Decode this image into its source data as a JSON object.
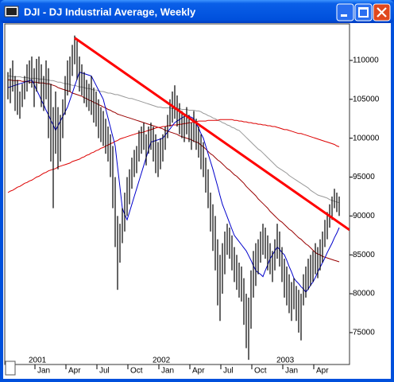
{
  "chart_data": {
    "type": "ohlc",
    "title": "DJI - DJ Industrial Average, Weekly",
    "categories": [
      null,
      null,
      null,
      null,
      null,
      null,
      null,
      null,
      null,
      null,
      null,
      null,
      "Jan",
      null,
      null,
      null,
      null,
      null,
      null,
      null,
      null,
      null,
      null,
      null,
      null,
      "Apr",
      null,
      null,
      null,
      null,
      null,
      null,
      null,
      null,
      null,
      null,
      null,
      null,
      "Jul",
      null,
      null,
      null,
      null,
      null,
      null,
      null,
      null,
      null,
      null,
      null,
      null,
      "Oct",
      null,
      null,
      null,
      null,
      null,
      null,
      null,
      null,
      null,
      null,
      null,
      null,
      "Jan",
      null,
      null,
      null,
      null,
      null,
      null,
      null,
      null,
      null,
      null,
      null,
      null,
      "Apr",
      null,
      null,
      null,
      null,
      null,
      null,
      null,
      null,
      null,
      null,
      null,
      null,
      "Jul",
      null,
      null,
      null,
      null,
      null,
      null,
      null,
      null,
      null,
      null,
      null,
      null,
      "Oct",
      null,
      null,
      null,
      null,
      null,
      null,
      null,
      null,
      null,
      null,
      null,
      null,
      "Jan",
      null,
      null,
      null,
      null,
      null,
      null,
      null,
      null,
      null,
      null,
      null,
      null,
      "Apr",
      null,
      null,
      null,
      null,
      null,
      null,
      null,
      null,
      null,
      null
    ],
    "year_labels": [
      "2001",
      "2002",
      "2003"
    ],
    "ylim": [
      70900,
      114700
    ],
    "yticks": [
      75000,
      80000,
      85000,
      90000,
      95000,
      100000,
      105000,
      110000
    ],
    "grid": false,
    "ohlc": {
      "color": "#000000",
      "high": [
        108500,
        109000,
        110000,
        108000,
        107500,
        106000,
        107000,
        108000,
        109500,
        110000,
        110500,
        109000,
        110200,
        110500,
        109500,
        108000,
        110000,
        109000,
        107000,
        104000,
        106000,
        104000,
        103000,
        105000,
        108000,
        110000,
        110500,
        112000,
        113200,
        112500,
        110500,
        109500,
        108500,
        107500,
        107000,
        108000,
        106500,
        106000,
        105000,
        104000,
        103500,
        102500,
        101500,
        100500,
        99000,
        95000,
        90000,
        89000,
        91000,
        93000,
        95000,
        96000,
        97500,
        98500,
        99000,
        101000,
        101500,
        102000,
        100500,
        101500,
        102000,
        101500,
        100500,
        99500,
        100000,
        100500,
        101500,
        103000,
        105000,
        106000,
        106800,
        105500,
        104500,
        103500,
        103000,
        104000,
        103000,
        102000,
        103500,
        102500,
        101500,
        100500,
        99500,
        97500,
        96000,
        93000,
        91500,
        90000,
        87000,
        85000,
        86500,
        88000,
        89000,
        88500,
        87500,
        86000,
        85000,
        84000,
        83500,
        82000,
        80000,
        79500,
        83000,
        85500,
        86500,
        87000,
        88000,
        89000,
        88500,
        87500,
        86500,
        85500,
        87000,
        89000,
        88000,
        86000,
        84500,
        83500,
        82500,
        81500,
        82000,
        81000,
        80500,
        80000,
        82500,
        83500,
        84500,
        85000,
        85500,
        86500,
        86000,
        87000,
        88000,
        89500,
        90500,
        91500,
        92500,
        93500,
        93000,
        92500
      ],
      "low": [
        105000,
        104500,
        106000,
        103500,
        103000,
        102500,
        104000,
        105000,
        106000,
        107000,
        106500,
        104000,
        106000,
        107000,
        104000,
        103500,
        105000,
        100000,
        97000,
        91000,
        98000,
        96000,
        97000,
        100000,
        103000,
        105500,
        106000,
        108000,
        109500,
        107500,
        106000,
        105500,
        104500,
        104000,
        103500,
        103000,
        102000,
        101500,
        100000,
        99500,
        99000,
        98000,
        97000,
        95000,
        91000,
        86000,
        80500,
        84000,
        86500,
        88000,
        90000,
        91500,
        93500,
        95000,
        95500,
        97000,
        98000,
        98500,
        96500,
        98000,
        98500,
        97000,
        95500,
        95000,
        96000,
        97000,
        98500,
        100000,
        101500,
        102000,
        102500,
        101500,
        100500,
        100000,
        99500,
        100500,
        99500,
        98500,
        99500,
        98500,
        97500,
        96000,
        95000,
        93000,
        91000,
        88000,
        85500,
        83000,
        78500,
        76500,
        80000,
        82500,
        85000,
        84500,
        83000,
        81500,
        80500,
        79500,
        79000,
        76000,
        73000,
        71500,
        75500,
        79500,
        81000,
        82500,
        84000,
        85000,
        84500,
        83000,
        82500,
        81500,
        83000,
        84500,
        83500,
        81500,
        79500,
        78500,
        77500,
        76500,
        78000,
        76500,
        75000,
        74000,
        78500,
        79500,
        80500,
        81000,
        81500,
        82500,
        82000,
        83000,
        84000,
        86000,
        87000,
        88500,
        89500,
        91000,
        90500,
        90000
      ]
    },
    "moving_averages": [
      {
        "color": "#999999",
        "values": [
          108000,
          108000,
          107900,
          107900,
          107900,
          107900,
          107800,
          107800,
          107800,
          107700,
          107700,
          107700,
          107700,
          107600,
          107600,
          107600,
          107500,
          107500,
          107400,
          107400,
          107300,
          107200,
          107200,
          107100,
          107000,
          107000,
          106900,
          106800,
          106800,
          106700,
          106600,
          106600,
          106500,
          106400,
          106400,
          106300,
          106200,
          106200,
          106100,
          106000,
          106000,
          105900,
          105800,
          105800,
          105700,
          105600,
          105600,
          105500,
          105400,
          105300,
          105200,
          105100,
          105100,
          105000,
          104900,
          104800,
          104700,
          104600,
          104500,
          104400,
          104300,
          104200,
          104100,
          104000,
          104000,
          103900,
          103900,
          103900,
          103900,
          103800,
          103800,
          103800,
          103800,
          103700,
          103700,
          103700,
          103600,
          103600,
          103600,
          103500,
          103500,
          103400,
          103200,
          103100,
          102900,
          102800,
          102600,
          102500,
          102300,
          102200,
          102000,
          101900,
          101700,
          101600,
          101400,
          101300,
          101100,
          101000,
          100700,
          100400,
          100100,
          99800,
          99500,
          99200,
          98900,
          98600,
          98400,
          98100,
          97800,
          97500,
          97200,
          96900,
          96600,
          96300,
          96100,
          95900,
          95700,
          95500,
          95200,
          95000,
          94800,
          94600,
          94400,
          94200,
          94000,
          93800,
          93600,
          93300,
          93100,
          92900,
          92700,
          92600,
          92500,
          92400,
          92300,
          92100,
          92000,
          91900,
          91800,
          91700
        ]
      },
      {
        "color": "#990000",
        "values": [
          107500,
          107500,
          107400,
          107400,
          107400,
          107400,
          107300,
          107300,
          107300,
          107200,
          107200,
          107200,
          107200,
          107100,
          107100,
          107100,
          107000,
          107000,
          106900,
          106800,
          106700,
          106500,
          106400,
          106300,
          106200,
          106100,
          106000,
          105800,
          105700,
          105600,
          105500,
          105400,
          105200,
          105100,
          104900,
          104800,
          104600,
          104500,
          104300,
          104200,
          104000,
          103900,
          103700,
          103600,
          103400,
          103300,
          103100,
          103000,
          102900,
          102800,
          102700,
          102600,
          102500,
          102400,
          102300,
          102200,
          102100,
          102000,
          101900,
          101800,
          101700,
          101600,
          101500,
          101400,
          101300,
          101200,
          101000,
          100900,
          100800,
          100700,
          100600,
          100500,
          100300,
          100200,
          100100,
          100000,
          99900,
          99800,
          99600,
          99500,
          99400,
          99100,
          98900,
          98600,
          98300,
          98000,
          97800,
          97500,
          97200,
          97000,
          96700,
          96400,
          96100,
          95900,
          95600,
          95300,
          95100,
          94800,
          94500,
          94200,
          93800,
          93500,
          93200,
          92900,
          92600,
          92200,
          91900,
          91600,
          91300,
          91000,
          90600,
          90300,
          90000,
          89700,
          89400,
          89200,
          88900,
          88600,
          88300,
          88100,
          87800,
          87500,
          87200,
          87000,
          86700,
          86400,
          86200,
          85900,
          85600,
          85300,
          85100,
          85000,
          84800,
          84700,
          84600,
          84500,
          84400,
          84300,
          84200,
          84100
        ]
      },
      {
        "color": "#dd0000",
        "values": [
          93000,
          93200,
          93300,
          93500,
          93700,
          93800,
          94000,
          94200,
          94300,
          94500,
          94600,
          94800,
          95000,
          95100,
          95300,
          95500,
          95600,
          95800,
          95900,
          96000,
          96100,
          96300,
          96400,
          96500,
          96600,
          96700,
          96800,
          97000,
          97100,
          97200,
          97300,
          97500,
          97600,
          97800,
          97900,
          98100,
          98200,
          98400,
          98500,
          98700,
          98800,
          99000,
          99100,
          99300,
          99400,
          99600,
          99700,
          99900,
          100000,
          100100,
          100200,
          100300,
          100400,
          100500,
          100600,
          100700,
          100700,
          100800,
          100900,
          101000,
          101100,
          101200,
          101300,
          101400,
          101400,
          101500,
          101500,
          101600,
          101600,
          101700,
          101700,
          101700,
          101800,
          101800,
          101900,
          101900,
          102000,
          102000,
          102100,
          102100,
          102200,
          102200,
          102200,
          102200,
          102300,
          102300,
          102300,
          102300,
          102300,
          102400,
          102400,
          102400,
          102400,
          102400,
          102400,
          102300,
          102300,
          102200,
          102200,
          102100,
          102100,
          102000,
          102000,
          101900,
          101900,
          101800,
          101800,
          101700,
          101700,
          101600,
          101600,
          101500,
          101500,
          101400,
          101300,
          101200,
          101100,
          101100,
          101000,
          100900,
          100800,
          100700,
          100600,
          100600,
          100500,
          100400,
          100300,
          100200,
          100100,
          100000,
          99900,
          99800,
          99700,
          99600,
          99500,
          99400,
          99300,
          99200,
          99000,
          98900
        ]
      },
      {
        "color": "#0000cc",
        "values": [
          106500,
          106600,
          106700,
          106800,
          106900,
          107000,
          107100,
          107200,
          107300,
          107400,
          107500,
          106900,
          106200,
          105600,
          104900,
          104300,
          103600,
          103000,
          102300,
          101700,
          101000,
          101600,
          102200,
          102800,
          103400,
          104000,
          104900,
          105800,
          106700,
          107600,
          108500,
          108400,
          108300,
          108200,
          108100,
          108000,
          107400,
          106800,
          106200,
          105600,
          105000,
          103800,
          102600,
          101400,
          100200,
          99000,
          96300,
          93700,
          91000,
          90200,
          89500,
          90500,
          91500,
          92500,
          93500,
          94500,
          95500,
          96500,
          97500,
          98500,
          99500,
          99600,
          99700,
          99800,
          99900,
          100000,
          100400,
          100800,
          101200,
          101600,
          102000,
          102200,
          102400,
          102600,
          102800,
          103000,
          102800,
          102700,
          102500,
          101900,
          101300,
          100600,
          100000,
          99000,
          98000,
          97000,
          96000,
          94900,
          93800,
          92600,
          91500,
          90700,
          89900,
          89100,
          88300,
          87500,
          87100,
          86700,
          86300,
          85900,
          85500,
          84900,
          84300,
          83600,
          83000,
          82700,
          82500,
          82200,
          83000,
          83700,
          84500,
          85000,
          85500,
          86000,
          85700,
          85300,
          85000,
          84300,
          83500,
          82800,
          82000,
          81600,
          81300,
          80900,
          80600,
          80200,
          80600,
          81100,
          81500,
          82100,
          82800,
          83400,
          84000,
          84600,
          85300,
          85900,
          86500,
          87200,
          87800,
          88500
        ]
      }
    ],
    "trendline": {
      "color": "#ff0000",
      "values": [
        112900,
        88200
      ]
    }
  }
}
